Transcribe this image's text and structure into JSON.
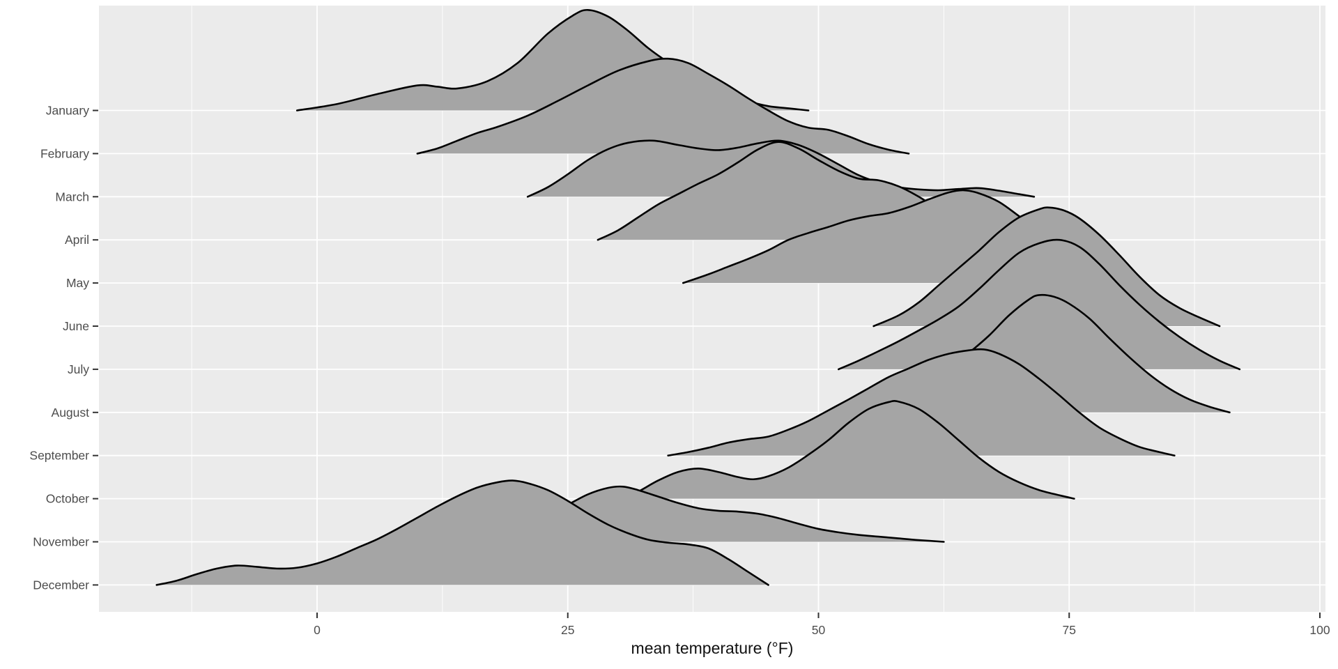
{
  "chart_data": {
    "type": "area",
    "variant": "ridgeline-joyplot",
    "title": "",
    "xlabel": "mean temperature (°F)",
    "ylabel": "",
    "x_ticks": [
      0,
      25,
      50,
      75,
      100
    ],
    "x_minor_ticks": [
      -12.5,
      12.5,
      37.5,
      62.5,
      87.5
    ],
    "xlim": [
      -21.8,
      100.6
    ],
    "grid": "white major and minor gridlines on gray panel, gridlines behind ridges",
    "legend": "none",
    "height_units": "ridge heights expressed in multiples of the row spacing (ggridges scale = 3)",
    "categories": [
      "January",
      "February",
      "March",
      "April",
      "May",
      "June",
      "July",
      "August",
      "September",
      "October",
      "November",
      "December"
    ],
    "series": [
      {
        "name": "January",
        "points": [
          [
            -2,
            0
          ],
          [
            2,
            0.15
          ],
          [
            6,
            0.38
          ],
          [
            10,
            0.58
          ],
          [
            12,
            0.55
          ],
          [
            14,
            0.51
          ],
          [
            17,
            0.68
          ],
          [
            20,
            1.1
          ],
          [
            23,
            1.78
          ],
          [
            25.5,
            2.2
          ],
          [
            27,
            2.33
          ],
          [
            29,
            2.18
          ],
          [
            31,
            1.85
          ],
          [
            33,
            1.45
          ],
          [
            35,
            1.12
          ],
          [
            37,
            0.85
          ],
          [
            39,
            0.62
          ],
          [
            41,
            0.44
          ],
          [
            43,
            0.22
          ],
          [
            45,
            0.1
          ],
          [
            47,
            0.05
          ],
          [
            49,
            0
          ]
        ]
      },
      {
        "name": "February",
        "points": [
          [
            10,
            0
          ],
          [
            12,
            0.12
          ],
          [
            14,
            0.3
          ],
          [
            16,
            0.48
          ],
          [
            18,
            0.62
          ],
          [
            21,
            0.88
          ],
          [
            24,
            1.22
          ],
          [
            27,
            1.58
          ],
          [
            30,
            1.92
          ],
          [
            33,
            2.14
          ],
          [
            35,
            2.2
          ],
          [
            37,
            2.1
          ],
          [
            39,
            1.85
          ],
          [
            41,
            1.58
          ],
          [
            43,
            1.28
          ],
          [
            45,
            1.0
          ],
          [
            47,
            0.75
          ],
          [
            49,
            0.6
          ],
          [
            51,
            0.55
          ],
          [
            53,
            0.4
          ],
          [
            55,
            0.22
          ],
          [
            57,
            0.09
          ],
          [
            59,
            0
          ]
        ]
      },
      {
        "name": "March",
        "points": [
          [
            21,
            0
          ],
          [
            23,
            0.22
          ],
          [
            25,
            0.52
          ],
          [
            27,
            0.85
          ],
          [
            29,
            1.1
          ],
          [
            31,
            1.25
          ],
          [
            33.5,
            1.3
          ],
          [
            36,
            1.2
          ],
          [
            38,
            1.12
          ],
          [
            40,
            1.08
          ],
          [
            42,
            1.14
          ],
          [
            44,
            1.24
          ],
          [
            46,
            1.3
          ],
          [
            48,
            1.2
          ],
          [
            50,
            1.0
          ],
          [
            52,
            0.75
          ],
          [
            54,
            0.5
          ],
          [
            56,
            0.33
          ],
          [
            58,
            0.22
          ],
          [
            60,
            0.17
          ],
          [
            62,
            0.15
          ],
          [
            64,
            0.18
          ],
          [
            66,
            0.2
          ],
          [
            68,
            0.14
          ],
          [
            70,
            0.06
          ],
          [
            71.5,
            0
          ]
        ]
      },
      {
        "name": "April",
        "points": [
          [
            28,
            0
          ],
          [
            30,
            0.22
          ],
          [
            32,
            0.52
          ],
          [
            34,
            0.82
          ],
          [
            36,
            1.06
          ],
          [
            38,
            1.3
          ],
          [
            40,
            1.52
          ],
          [
            42,
            1.8
          ],
          [
            44,
            2.1
          ],
          [
            46,
            2.27
          ],
          [
            48,
            2.12
          ],
          [
            50,
            1.85
          ],
          [
            52,
            1.6
          ],
          [
            54,
            1.42
          ],
          [
            56,
            1.38
          ],
          [
            58,
            1.24
          ],
          [
            60,
            1.0
          ],
          [
            62,
            0.7
          ],
          [
            64,
            0.42
          ],
          [
            66,
            0.22
          ],
          [
            68,
            0.1
          ],
          [
            70,
            0
          ]
        ]
      },
      {
        "name": "May",
        "points": [
          [
            36.5,
            0
          ],
          [
            39,
            0.2
          ],
          [
            41,
            0.38
          ],
          [
            43,
            0.56
          ],
          [
            45,
            0.76
          ],
          [
            47,
            1.0
          ],
          [
            49,
            1.16
          ],
          [
            51,
            1.3
          ],
          [
            53,
            1.45
          ],
          [
            55,
            1.55
          ],
          [
            57,
            1.62
          ],
          [
            59,
            1.76
          ],
          [
            61,
            1.94
          ],
          [
            63,
            2.1
          ],
          [
            64.5,
            2.15
          ],
          [
            66,
            2.08
          ],
          [
            68,
            1.88
          ],
          [
            70,
            1.55
          ],
          [
            71.5,
            1.3
          ],
          [
            73,
            1.0
          ],
          [
            75,
            0.6
          ],
          [
            77,
            0.28
          ],
          [
            79,
            0.1
          ],
          [
            81,
            0
          ]
        ]
      },
      {
        "name": "June",
        "points": [
          [
            55.5,
            0
          ],
          [
            58,
            0.25
          ],
          [
            60,
            0.55
          ],
          [
            62,
            0.95
          ],
          [
            64,
            1.35
          ],
          [
            66,
            1.75
          ],
          [
            68,
            2.18
          ],
          [
            70,
            2.52
          ],
          [
            72,
            2.71
          ],
          [
            73,
            2.75
          ],
          [
            74.5,
            2.68
          ],
          [
            76,
            2.5
          ],
          [
            78,
            2.12
          ],
          [
            80,
            1.65
          ],
          [
            82,
            1.15
          ],
          [
            84,
            0.72
          ],
          [
            86,
            0.42
          ],
          [
            88,
            0.2
          ],
          [
            90,
            0
          ]
        ]
      },
      {
        "name": "July",
        "points": [
          [
            52,
            0
          ],
          [
            54,
            0.2
          ],
          [
            56,
            0.42
          ],
          [
            58,
            0.65
          ],
          [
            60,
            0.9
          ],
          [
            62,
            1.16
          ],
          [
            64,
            1.46
          ],
          [
            66,
            1.86
          ],
          [
            68,
            2.3
          ],
          [
            70,
            2.7
          ],
          [
            72,
            2.92
          ],
          [
            74,
            3.0
          ],
          [
            76,
            2.84
          ],
          [
            78,
            2.44
          ],
          [
            80,
            1.95
          ],
          [
            82,
            1.5
          ],
          [
            84,
            1.1
          ],
          [
            86,
            0.75
          ],
          [
            88,
            0.45
          ],
          [
            90,
            0.2
          ],
          [
            92,
            0
          ]
        ]
      },
      {
        "name": "August",
        "points": [
          [
            53,
            0
          ],
          [
            55,
            0.1
          ],
          [
            57,
            0.25
          ],
          [
            59,
            0.45
          ],
          [
            61,
            0.72
          ],
          [
            63,
            1.02
          ],
          [
            65,
            1.38
          ],
          [
            67,
            1.78
          ],
          [
            69,
            2.25
          ],
          [
            71,
            2.62
          ],
          [
            72,
            2.72
          ],
          [
            73.5,
            2.68
          ],
          [
            75,
            2.52
          ],
          [
            77,
            2.18
          ],
          [
            79,
            1.72
          ],
          [
            81,
            1.28
          ],
          [
            83,
            0.88
          ],
          [
            85,
            0.55
          ],
          [
            87,
            0.3
          ],
          [
            89,
            0.13
          ],
          [
            91,
            0
          ]
        ]
      },
      {
        "name": "September",
        "points": [
          [
            35,
            0
          ],
          [
            37,
            0.08
          ],
          [
            39,
            0.18
          ],
          [
            41,
            0.3
          ],
          [
            43,
            0.38
          ],
          [
            45,
            0.44
          ],
          [
            47,
            0.6
          ],
          [
            49,
            0.8
          ],
          [
            51,
            1.05
          ],
          [
            53,
            1.3
          ],
          [
            55,
            1.56
          ],
          [
            57,
            1.82
          ],
          [
            59,
            2.02
          ],
          [
            61,
            2.22
          ],
          [
            63,
            2.36
          ],
          [
            65,
            2.44
          ],
          [
            66.5,
            2.46
          ],
          [
            68,
            2.36
          ],
          [
            70,
            2.12
          ],
          [
            72,
            1.78
          ],
          [
            74,
            1.4
          ],
          [
            76,
            1.0
          ],
          [
            78,
            0.65
          ],
          [
            80,
            0.4
          ],
          [
            82,
            0.2
          ],
          [
            84,
            0.08
          ],
          [
            85.5,
            0
          ]
        ]
      },
      {
        "name": "October",
        "points": [
          [
            30.5,
            0
          ],
          [
            32,
            0.16
          ],
          [
            34,
            0.42
          ],
          [
            36,
            0.62
          ],
          [
            38,
            0.7
          ],
          [
            40,
            0.62
          ],
          [
            42,
            0.5
          ],
          [
            43.5,
            0.45
          ],
          [
            45,
            0.52
          ],
          [
            47,
            0.72
          ],
          [
            49,
            1.02
          ],
          [
            51,
            1.36
          ],
          [
            53,
            1.76
          ],
          [
            55,
            2.08
          ],
          [
            57,
            2.24
          ],
          [
            58,
            2.25
          ],
          [
            60,
            2.08
          ],
          [
            62,
            1.75
          ],
          [
            64,
            1.35
          ],
          [
            66,
            0.95
          ],
          [
            68,
            0.62
          ],
          [
            70,
            0.38
          ],
          [
            72,
            0.2
          ],
          [
            74,
            0.08
          ],
          [
            75.5,
            0
          ]
        ]
      },
      {
        "name": "November",
        "points": [
          [
            6,
            0
          ],
          [
            8,
            0.12
          ],
          [
            10,
            0.28
          ],
          [
            12,
            0.45
          ],
          [
            14,
            0.55
          ],
          [
            15.5,
            0.57
          ],
          [
            17,
            0.52
          ],
          [
            19,
            0.46
          ],
          [
            21,
            0.5
          ],
          [
            23,
            0.64
          ],
          [
            25,
            0.86
          ],
          [
            27,
            1.1
          ],
          [
            29,
            1.25
          ],
          [
            30.5,
            1.28
          ],
          [
            32,
            1.2
          ],
          [
            34,
            1.05
          ],
          [
            36,
            0.9
          ],
          [
            38,
            0.78
          ],
          [
            40,
            0.72
          ],
          [
            42,
            0.7
          ],
          [
            44,
            0.65
          ],
          [
            46,
            0.55
          ],
          [
            48,
            0.42
          ],
          [
            50,
            0.3
          ],
          [
            52,
            0.22
          ],
          [
            54,
            0.16
          ],
          [
            56,
            0.12
          ],
          [
            58,
            0.08
          ],
          [
            60,
            0.04
          ],
          [
            62.5,
            0
          ]
        ]
      },
      {
        "name": "December",
        "points": [
          [
            -16,
            0
          ],
          [
            -14,
            0.1
          ],
          [
            -12,
            0.25
          ],
          [
            -10,
            0.38
          ],
          [
            -8,
            0.45
          ],
          [
            -6,
            0.42
          ],
          [
            -4,
            0.38
          ],
          [
            -2,
            0.4
          ],
          [
            0,
            0.5
          ],
          [
            2,
            0.66
          ],
          [
            4,
            0.86
          ],
          [
            6,
            1.06
          ],
          [
            8,
            1.3
          ],
          [
            10,
            1.56
          ],
          [
            12,
            1.82
          ],
          [
            14,
            2.06
          ],
          [
            16,
            2.26
          ],
          [
            18,
            2.38
          ],
          [
            19.5,
            2.42
          ],
          [
            21,
            2.36
          ],
          [
            23,
            2.2
          ],
          [
            25,
            1.95
          ],
          [
            27,
            1.66
          ],
          [
            29,
            1.4
          ],
          [
            31,
            1.2
          ],
          [
            33,
            1.05
          ],
          [
            35,
            0.98
          ],
          [
            37,
            0.94
          ],
          [
            39,
            0.85
          ],
          [
            41,
            0.6
          ],
          [
            43,
            0.3
          ],
          [
            45,
            0
          ]
        ]
      }
    ]
  },
  "colors": {
    "background": "#ffffff",
    "panel": "#ebebeb",
    "grid_major": "#ffffff",
    "grid_minor": "#ffffff",
    "ridge_fill": "#a5a5a5",
    "ridge_stroke": "#000000",
    "tick_mark": "#333333",
    "tick_label": "#4d4d4d",
    "axis_title": "#111111"
  }
}
